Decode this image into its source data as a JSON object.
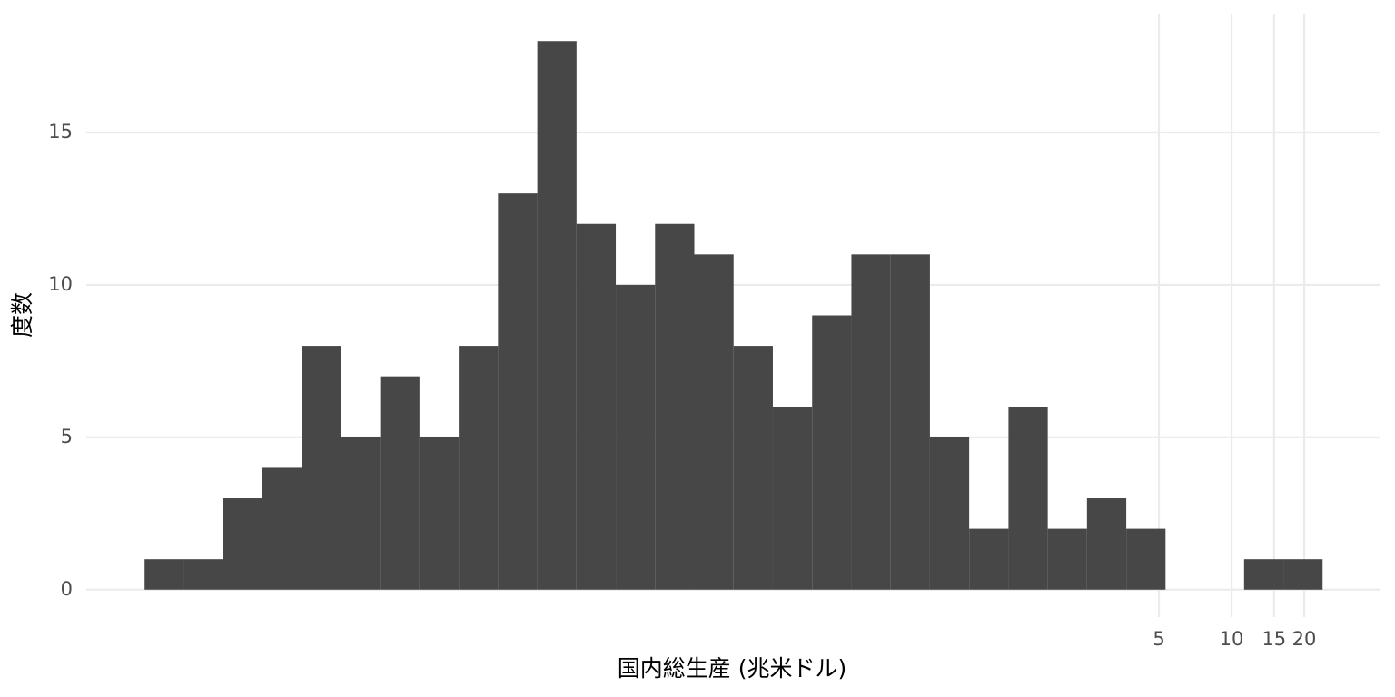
{
  "chart_data": {
    "type": "histogram",
    "xlabel": "国内総生産 (兆米ドル)",
    "ylabel": "度数",
    "bins": [
      0.000314,
      0.000457,
      0.000664,
      0.000966,
      0.001405,
      0.002043,
      0.002972,
      0.004322,
      0.006286,
      0.009142,
      0.0133,
      0.01934,
      0.02812,
      0.0409,
      0.05948,
      0.08651,
      0.1258,
      0.183,
      0.2661,
      0.387,
      0.5629,
      0.8186,
      1.191,
      1.732,
      2.518,
      3.663,
      5.327,
      7.747,
      11.27,
      16.39,
      23.83
    ],
    "values": [
      1,
      1,
      3,
      4,
      8,
      5,
      7,
      5,
      8,
      13,
      18,
      12,
      10,
      12,
      11,
      8,
      6,
      9,
      11,
      11,
      5,
      2,
      6,
      2,
      3,
      2,
      0,
      0,
      1,
      1
    ],
    "color": "#474747",
    "xscale": "log",
    "xlim": [
      0.00018,
      41.4
    ],
    "xticks": [
      5,
      10,
      15,
      20
    ],
    "ylim": [
      -0.9,
      18.9
    ],
    "yticks": [
      0,
      5,
      10,
      15
    ],
    "grid": true
  }
}
